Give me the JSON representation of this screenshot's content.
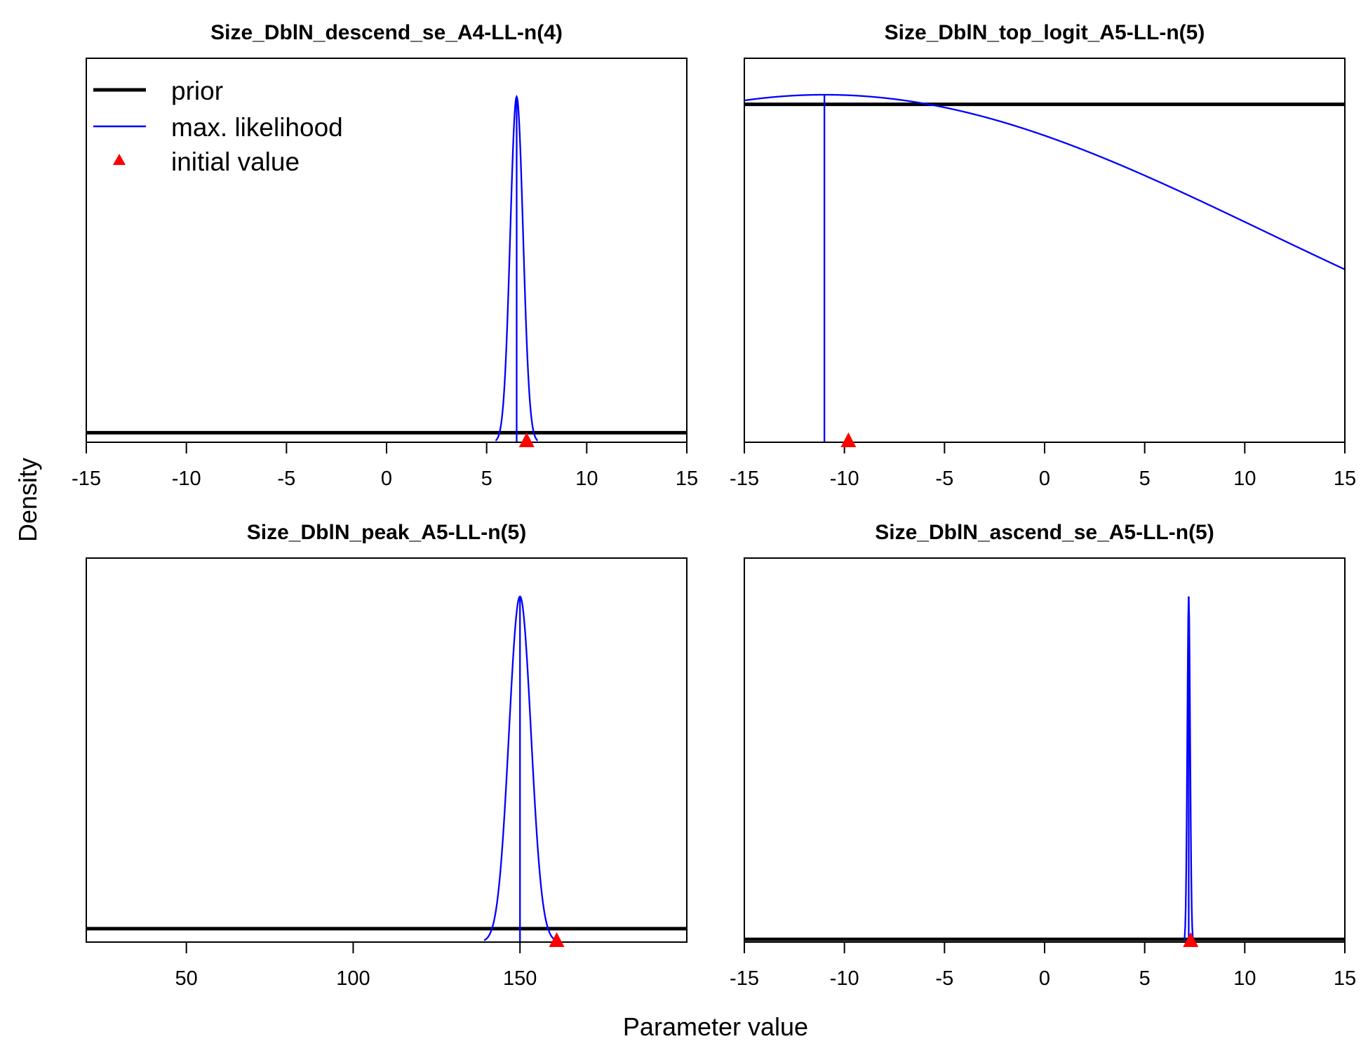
{
  "figure": {
    "xlabel": "Parameter value",
    "ylabel": "Density"
  },
  "legend": {
    "placement": "top-left of first panel",
    "entries": [
      {
        "label": "prior",
        "kind": "line",
        "color": "#000000"
      },
      {
        "label": "max. likelihood",
        "kind": "line",
        "color": "#0000ff"
      },
      {
        "label": "initial value",
        "kind": "triangle",
        "color": "#ff0000"
      }
    ]
  },
  "colors": {
    "prior": "#000000",
    "mle": "#0000ff",
    "initial": "#ff0000",
    "axis": "#000000"
  },
  "chart_data": [
    {
      "type": "line",
      "title": "Size_DblN_descend_se_A4-LL-n(4)",
      "xlim": [
        -15,
        15
      ],
      "xticks": [
        -15,
        -10,
        -5,
        0,
        5,
        10,
        15
      ],
      "xtick_labels": [
        "-15",
        "-10",
        "-5",
        "0",
        "5",
        "10",
        "15"
      ],
      "prior": {
        "shape": "flat",
        "level": 0.025
      },
      "mle": {
        "shape": "normal",
        "mean": 6.5,
        "sd": 0.32,
        "peak": 0.9
      },
      "initial_value": 7.0
    },
    {
      "type": "line",
      "title": "Size_DblN_top_logit_A5-LL-n(5)",
      "xlim": [
        -15,
        15
      ],
      "xticks": [
        -15,
        -10,
        -5,
        0,
        5,
        10,
        15
      ],
      "xtick_labels": [
        "-15",
        "-10",
        "-5",
        "0",
        "5",
        "10",
        "15"
      ],
      "prior": {
        "shape": "flat",
        "level": 0.88
      },
      "mle": {
        "shape": "normal",
        "mean": -11.0,
        "sd": 22.0,
        "peak": 0.905,
        "vline": -11.0
      },
      "initial_value": -9.8
    },
    {
      "type": "line",
      "title": "Size_DblN_peak_A5-LL-n(5)",
      "xlim": [
        20,
        200
      ],
      "xticks": [
        50,
        100,
        150
      ],
      "xtick_labels": [
        "50",
        "100",
        "150"
      ],
      "prior": {
        "shape": "flat",
        "level": 0.035
      },
      "mle": {
        "shape": "normal",
        "mean": 150,
        "sd": 3.3,
        "peak": 0.9
      },
      "initial_value": 161
    },
    {
      "type": "line",
      "title": "Size_DblN_ascend_se_A5-LL-n(5)",
      "xlim": [
        -15,
        15
      ],
      "xticks": [
        -15,
        -10,
        -5,
        0,
        5,
        10,
        15
      ],
      "xtick_labels": [
        "-15",
        "-10",
        "-5",
        "0",
        "5",
        "10",
        "15"
      ],
      "prior": {
        "shape": "flat",
        "level": 0.007
      },
      "mle": {
        "shape": "normal",
        "mean": 7.2,
        "sd": 0.07,
        "peak": 0.9
      },
      "initial_value": 7.3
    }
  ]
}
